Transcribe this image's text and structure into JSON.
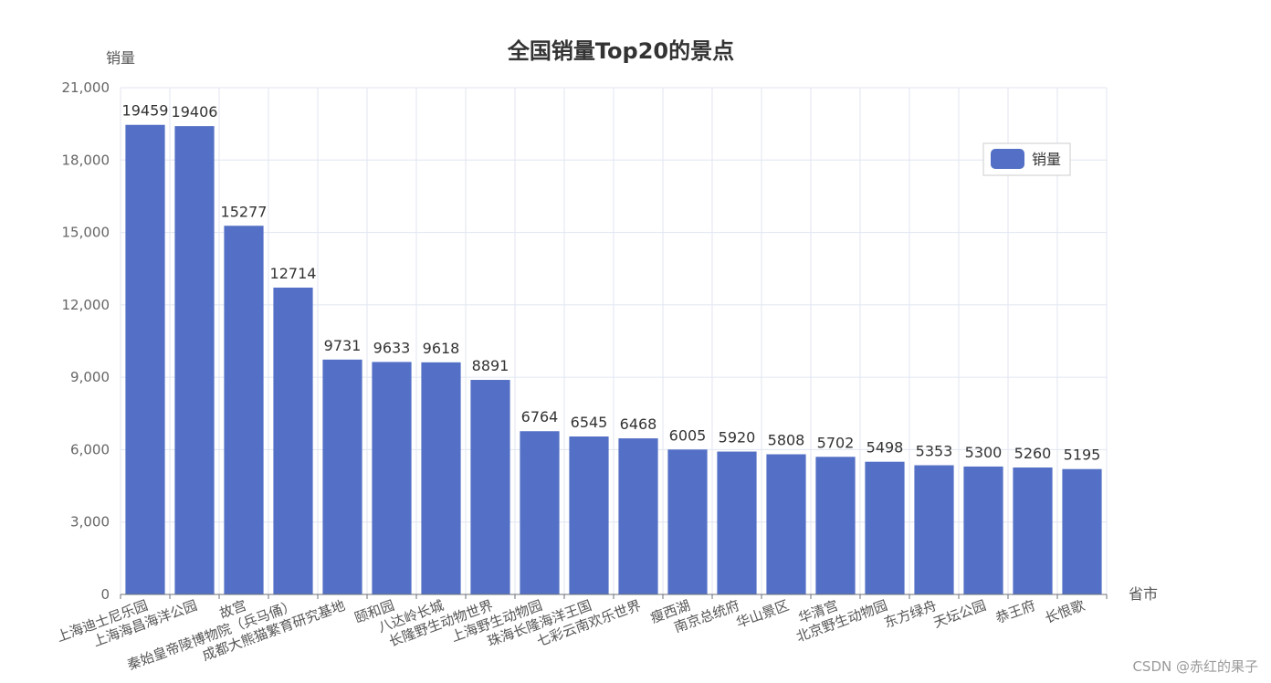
{
  "chart_data": {
    "type": "bar",
    "title": "全国销量Top20的景点",
    "xlabel": "省市",
    "ylabel": "销量",
    "ylim": [
      0,
      21000
    ],
    "yticks": [
      "0",
      "3,000",
      "6,000",
      "9,000",
      "12,000",
      "15,000",
      "18,000",
      "21,000"
    ],
    "categories": [
      "上海迪士尼乐园",
      "上海海昌海洋公园",
      "故宫",
      "秦始皇帝陵博物院（兵马俑）",
      "成都大熊猫繁育研究基地",
      "颐和园",
      "八达岭长城",
      "长隆野生动物世界",
      "上海野生动物园",
      "珠海长隆海洋王国",
      "七彩云南欢乐世界",
      "瘦西湖",
      "南京总统府",
      "华山景区",
      "华清宫",
      "北京野生动物园",
      "东方绿舟",
      "天坛公园",
      "恭王府",
      "长恨歌"
    ],
    "series": [
      {
        "name": "销量",
        "color": "#5470c6",
        "values": [
          19459,
          19406,
          15277,
          12714,
          9731,
          9633,
          9618,
          8891,
          6764,
          6545,
          6468,
          6005,
          5920,
          5808,
          5702,
          5498,
          5353,
          5300,
          5260,
          5195
        ]
      }
    ],
    "legend": {
      "position": "top-right",
      "label": "销量"
    },
    "grid": true
  },
  "watermark": "CSDN @赤红的果子"
}
